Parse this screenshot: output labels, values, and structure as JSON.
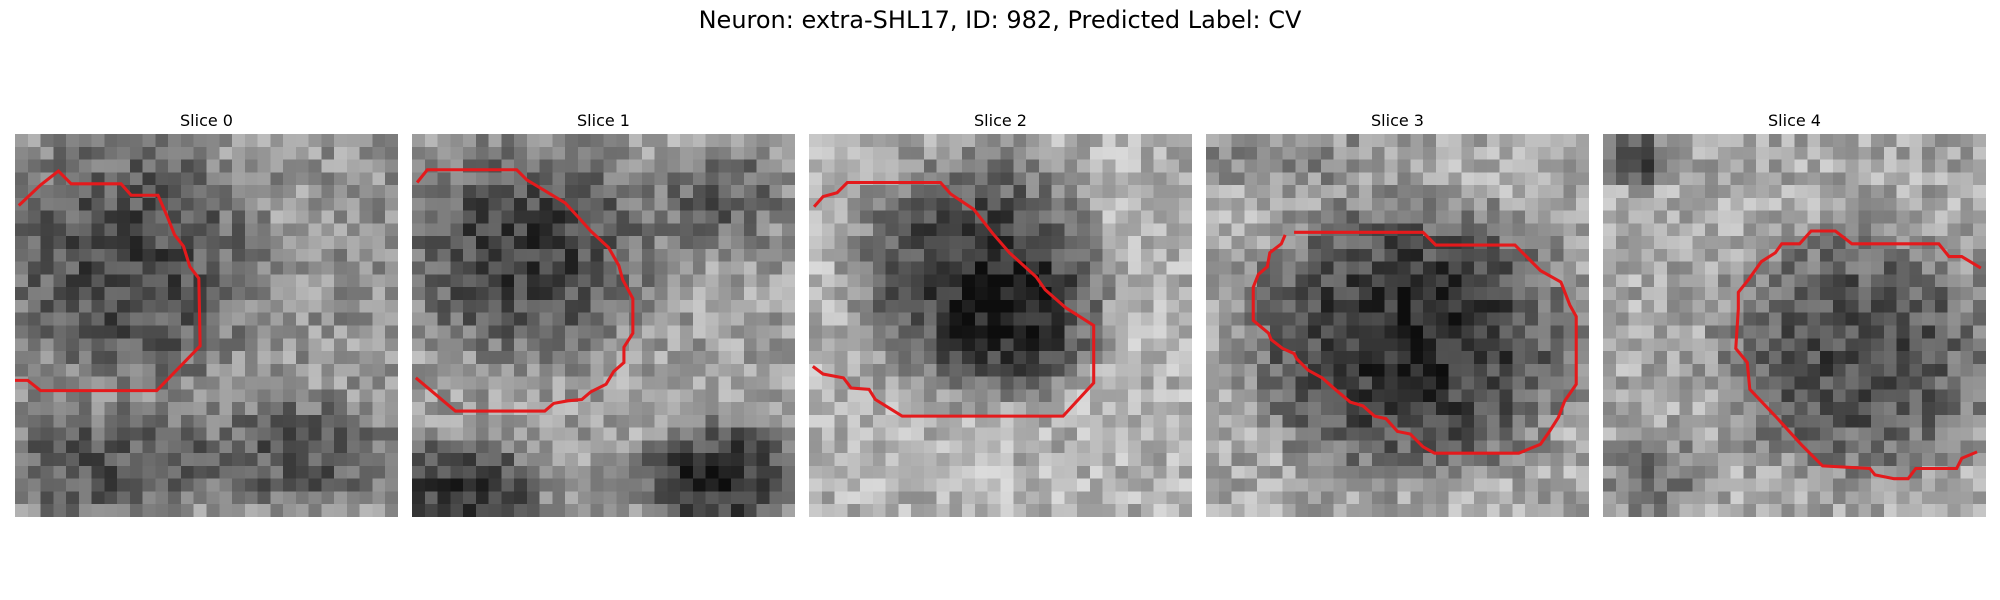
{
  "title": "Neuron: extra-SHL17, ID: 982, Predicted Label: CV",
  "contour_color": "#e41a1c",
  "panels": [
    {
      "title": "Slice 0"
    },
    {
      "title": "Slice 1"
    },
    {
      "title": "Slice 2"
    },
    {
      "title": "Slice 3"
    },
    {
      "title": "Slice 4"
    }
  ]
}
